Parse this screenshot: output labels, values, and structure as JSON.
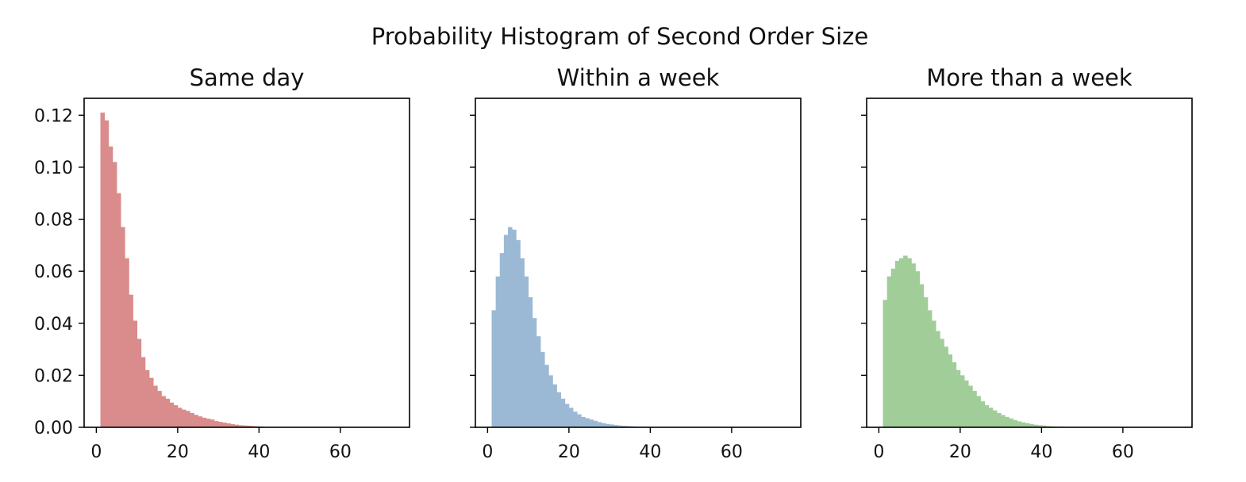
{
  "suptitle": "Probability Histogram of Second Order Size",
  "chart_data": [
    {
      "type": "histogram",
      "title": "Same day",
      "color": "#d98c8b",
      "bin_width": 1,
      "bin_start": 1,
      "values": [
        0.121,
        0.118,
        0.108,
        0.102,
        0.09,
        0.077,
        0.065,
        0.051,
        0.041,
        0.034,
        0.027,
        0.022,
        0.019,
        0.016,
        0.014,
        0.012,
        0.011,
        0.0095,
        0.0085,
        0.0075,
        0.0068,
        0.0063,
        0.0055,
        0.0048,
        0.0042,
        0.0037,
        0.0033,
        0.003,
        0.0024,
        0.0021,
        0.0018,
        0.0015,
        0.0012,
        0.001,
        0.0008,
        0.0007,
        0.0006,
        0.0005,
        0.0004,
        0.0003
      ],
      "xlim": [
        -3,
        77
      ],
      "ylim": [
        0,
        0.1265
      ],
      "xticks": [
        0,
        20,
        40,
        60
      ],
      "yticks": [
        0.0,
        0.02,
        0.04,
        0.06,
        0.08,
        0.1,
        0.12
      ],
      "ytick_labels": [
        "0.00",
        "0.02",
        "0.04",
        "0.06",
        "0.08",
        "0.10",
        "0.12"
      ]
    },
    {
      "type": "histogram",
      "title": "Within a week",
      "color": "#9bb9d4",
      "bin_width": 1,
      "bin_start": 1,
      "values": [
        0.045,
        0.058,
        0.067,
        0.074,
        0.077,
        0.076,
        0.072,
        0.065,
        0.058,
        0.05,
        0.042,
        0.035,
        0.029,
        0.024,
        0.02,
        0.0165,
        0.0135,
        0.011,
        0.009,
        0.0075,
        0.006,
        0.005,
        0.004,
        0.0035,
        0.003,
        0.0025,
        0.002,
        0.0016,
        0.0013,
        0.0011,
        0.0009,
        0.0007,
        0.0006,
        0.0005,
        0.0004,
        0.0003,
        0.0002,
        0.0002,
        0.0001,
        0.0001,
        0.0001
      ],
      "xlim": [
        -3,
        77
      ],
      "ylim": [
        0,
        0.1265
      ],
      "xticks": [
        0,
        20,
        40,
        60
      ],
      "yticks": [
        0.0,
        0.02,
        0.04,
        0.06,
        0.08,
        0.1,
        0.12
      ]
    },
    {
      "type": "histogram",
      "title": "More than a week",
      "color": "#a0cd98",
      "bin_width": 1,
      "bin_start": 1,
      "values": [
        0.049,
        0.058,
        0.061,
        0.064,
        0.065,
        0.066,
        0.065,
        0.063,
        0.06,
        0.055,
        0.05,
        0.045,
        0.041,
        0.037,
        0.034,
        0.031,
        0.028,
        0.025,
        0.022,
        0.02,
        0.018,
        0.016,
        0.014,
        0.012,
        0.01,
        0.0085,
        0.0075,
        0.0065,
        0.0055,
        0.0047,
        0.004,
        0.0034,
        0.0028,
        0.0023,
        0.0019,
        0.0016,
        0.0013,
        0.001,
        0.0008,
        0.0007,
        0.0005,
        0.0004,
        0.0003,
        0.0002,
        0.0002
      ],
      "xlim": [
        -3,
        77
      ],
      "ylim": [
        0,
        0.1265
      ],
      "xticks": [
        0,
        20,
        40,
        60
      ],
      "yticks": [
        0.0,
        0.02,
        0.04,
        0.06,
        0.08,
        0.1,
        0.12
      ]
    }
  ]
}
